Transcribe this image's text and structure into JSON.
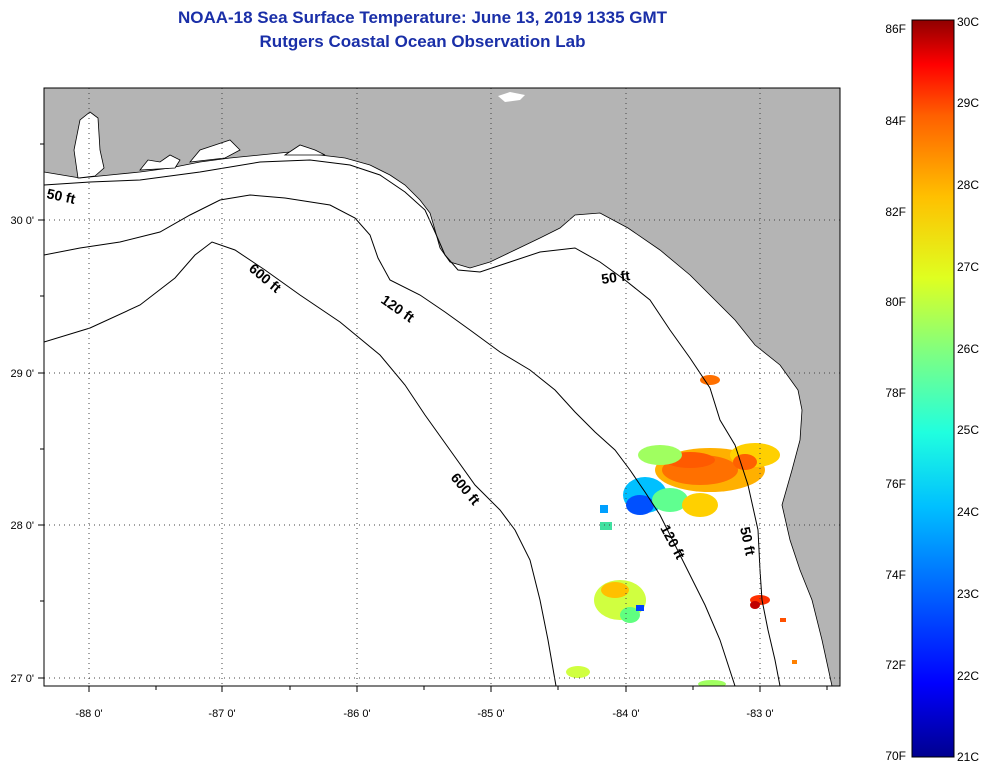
{
  "header": {
    "title": "NOAA-18 Sea Surface Temperature:  June 13, 2019 1335 GMT",
    "subtitle": "Rutgers Coastal Ocean Observation Lab"
  },
  "axes": {
    "lon_labels": [
      "-88 0'",
      "-87 0'",
      "-86 0'",
      "-85 0'",
      "-84 0'",
      "-83 0'"
    ],
    "lat_labels": [
      "30 0'",
      "29 0'",
      "28 0'",
      "27 0'"
    ]
  },
  "contours": {
    "labels": [
      "50 ft",
      "600 ft",
      "120 ft",
      "50 ft",
      "600 ft",
      "120 ft",
      "50 ft"
    ]
  },
  "colorbar": {
    "f_labels": [
      "86F",
      "84F",
      "82F",
      "80F",
      "78F",
      "76F",
      "74F",
      "72F",
      "70F"
    ],
    "c_labels": [
      "30C",
      "29C",
      "28C",
      "27C",
      "26C",
      "25C",
      "24C",
      "23C",
      "22C",
      "21C"
    ],
    "colors": [
      "#00008f",
      "#0000ff",
      "#0060ff",
      "#00c0ff",
      "#20ffdf",
      "#80ff80",
      "#dfff20",
      "#ffc000",
      "#ff6000",
      "#ff0000",
      "#8f0000"
    ]
  },
  "colors": {
    "land": "#b4b4b4",
    "water": "#ffffff",
    "title": "#1a2fa8"
  }
}
